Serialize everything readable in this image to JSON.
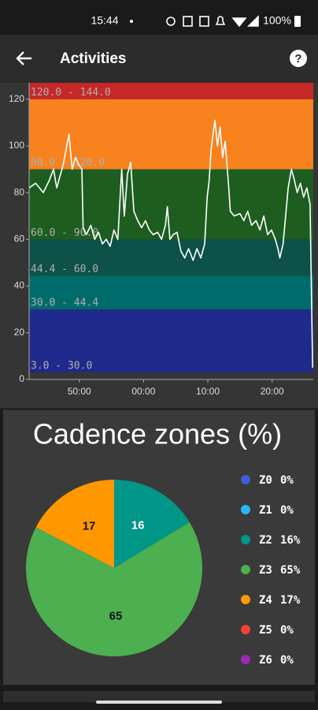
{
  "status_bar": {
    "time": "15:44",
    "battery": "100%"
  },
  "app_bar": {
    "title": "Activities"
  },
  "chart_data": [
    {
      "type": "line",
      "x": [
        42.2,
        43.2,
        44.4,
        45.3,
        46.0,
        46.5,
        47.5,
        48.4,
        48.9,
        49.4,
        49.9,
        50.4,
        50.6,
        51.1,
        51.8,
        52.4,
        53.0,
        53.6,
        54.2,
        54.8,
        55.4,
        56.0,
        56.6,
        57.0,
        57.5,
        58.0,
        58.5,
        59.1,
        59.7,
        60.3,
        60.9,
        61.5,
        62.2,
        62.8,
        63.4,
        63.7,
        64.1,
        64.6,
        65.2,
        65.8,
        66.4,
        67.0,
        67.7,
        68.3,
        68.9,
        69.5,
        69.9,
        70.2,
        70.5,
        70.8,
        71.1,
        71.5,
        71.9,
        72.3,
        72.7,
        73.2,
        73.5,
        74.1,
        75.0,
        75.6,
        76.2,
        76.8,
        77.5,
        78.1,
        78.7,
        79.3,
        79.9,
        80.5,
        80.9,
        81.2,
        81.7,
        82.1,
        82.5,
        83.0,
        83.4,
        83.9,
        84.4,
        84.9,
        85.4,
        85.9,
        86.3
      ],
      "values": [
        82,
        84,
        80,
        85,
        90,
        82,
        92,
        105,
        90,
        95,
        92,
        90,
        65,
        62,
        66,
        60,
        63,
        58,
        60,
        57,
        64,
        60,
        90,
        70,
        88,
        93,
        72,
        68,
        65,
        68,
        64,
        62,
        63,
        60,
        66,
        74,
        60,
        62,
        63,
        55,
        52,
        56,
        51,
        56,
        52,
        58,
        78,
        85,
        98,
        105,
        111,
        100,
        108,
        95,
        102,
        84,
        72,
        70,
        71,
        68,
        72,
        66,
        68,
        64,
        70,
        62,
        64,
        60,
        56,
        52,
        58,
        70,
        82,
        90,
        86,
        80,
        84,
        78,
        82,
        75,
        5
      ],
      "color": "#ffffff",
      "xlim": [
        42.2,
        86.4
      ],
      "xticks": [
        {
          "value": 50,
          "label": "50:00"
        },
        {
          "value": 60,
          "label": "00:00"
        },
        {
          "value": 70,
          "label": "10:00"
        },
        {
          "value": 80,
          "label": "20:00"
        }
      ],
      "ylim": [
        0,
        127
      ],
      "yticks": [
        0,
        20,
        40,
        60,
        80,
        100,
        120
      ],
      "zones": [
        {
          "label": "3.0 - 30.0",
          "low": 3,
          "high": 30,
          "color": "#1f2a8c"
        },
        {
          "label": "30.0 - 44.4",
          "low": 30,
          "high": 44.4,
          "color": "#006b6b"
        },
        {
          "label": "44.4 - 60.0",
          "low": 44.4,
          "high": 60,
          "color": "#0d5148"
        },
        {
          "label": "60.0 - 90.0",
          "low": 60,
          "high": 90,
          "color": "#1d5e20"
        },
        {
          "label": "90.0 - 120.0",
          "low": 90,
          "high": 120,
          "color": "#f7821e"
        },
        {
          "label": "120.0 - 144.0",
          "low": 120,
          "high": 144,
          "color": "#c62828"
        }
      ]
    },
    {
      "type": "pie",
      "title": "Cadence zones (%)",
      "categories": [
        "Z0",
        "Z1",
        "Z2",
        "Z3",
        "Z4",
        "Z5",
        "Z6"
      ],
      "values": [
        0,
        0,
        16,
        65,
        17,
        0,
        0
      ],
      "value_labels": [
        "0%",
        "0%",
        "16%",
        "65%",
        "17%",
        "0%",
        "0%"
      ],
      "colors": [
        "#3f5fd4",
        "#29b6f6",
        "#009688",
        "#4caf50",
        "#ff9800",
        "#f44336",
        "#9c27b0"
      ]
    }
  ]
}
